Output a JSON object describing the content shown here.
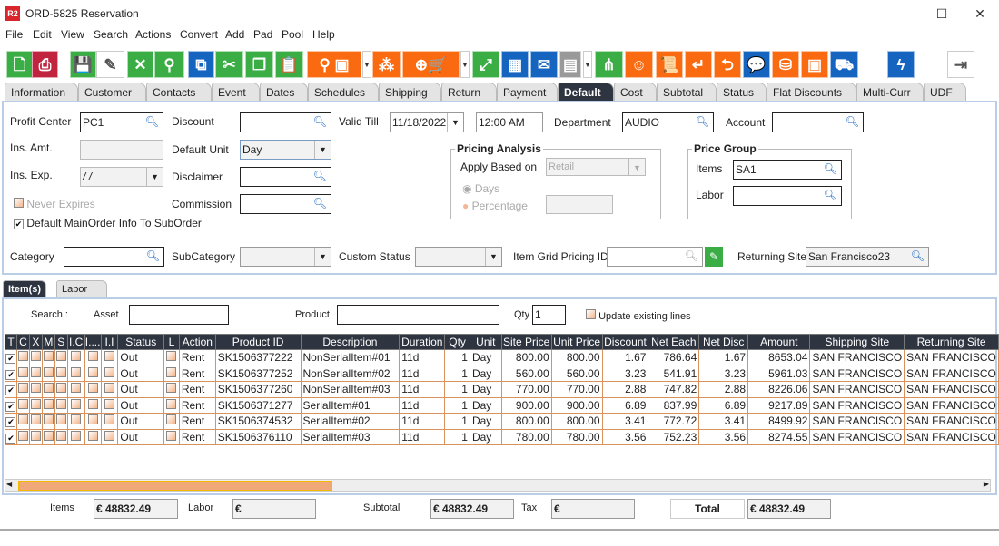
{
  "window": {
    "title": "ORD-5825 Reservation",
    "app_icon": "R2",
    "minimize": "—",
    "maximize": "☐",
    "close": "✕"
  },
  "menu": [
    "File",
    "Edit",
    "View",
    "Search",
    "Actions",
    "Convert",
    "Add",
    "Pad",
    "Pool",
    "Help"
  ],
  "toolbar": [
    {
      "icon": "new-document-icon",
      "glyph": "🗋"
    },
    {
      "icon": "print-icon",
      "glyph": "⎙"
    },
    {
      "icon": "save-icon",
      "glyph": "💾"
    },
    {
      "icon": "edit-icon",
      "glyph": "✎"
    },
    {
      "icon": "delete-icon",
      "glyph": "✕"
    },
    {
      "icon": "search-icon",
      "glyph": "⚲"
    },
    {
      "icon": "copy-order-icon",
      "glyph": "⧉"
    },
    {
      "icon": "cut-icon",
      "glyph": "✂"
    },
    {
      "icon": "copy-icon",
      "glyph": "❐"
    },
    {
      "icon": "paste-icon",
      "glyph": "📋"
    },
    {
      "icon": "search-product-icon",
      "glyph": "⚲ ▣"
    },
    {
      "icon": "kit-icon",
      "glyph": "⁂"
    },
    {
      "icon": "purchase-order-cart-icon",
      "glyph": "⊕🛒"
    },
    {
      "icon": "expand-icon",
      "glyph": "⤢"
    },
    {
      "icon": "hierarchy-icon",
      "glyph": "▦"
    },
    {
      "icon": "message-icon",
      "glyph": "✉"
    },
    {
      "icon": "calendar-icon",
      "glyph": "▤"
    },
    {
      "icon": "tree-icon",
      "glyph": "⋔"
    },
    {
      "icon": "smile-icon",
      "glyph": "☺"
    },
    {
      "icon": "scroll-icon",
      "glyph": "📜"
    },
    {
      "icon": "return-icon",
      "glyph": "↵"
    },
    {
      "icon": "package-return-icon",
      "glyph": "⮌"
    },
    {
      "icon": "chat-count-icon",
      "glyph": "💬"
    },
    {
      "icon": "coins-icon",
      "glyph": "⛁"
    },
    {
      "icon": "safe-icon",
      "glyph": "▣"
    },
    {
      "icon": "delivery-truck-icon",
      "glyph": "⛟"
    },
    {
      "icon": "lightning-icon",
      "glyph": "ϟ"
    },
    {
      "icon": "exit-icon",
      "glyph": "⇥"
    }
  ],
  "tabs": [
    "Information",
    "Customer",
    "Contacts",
    "Event",
    "Dates",
    "Schedules",
    "Shipping",
    "Return",
    "Payment",
    "Default",
    "Cost",
    "Subtotal",
    "Status",
    "Flat Discounts",
    "Multi-Curr",
    "UDF"
  ],
  "active_tab": "Default",
  "form": {
    "profit_center_label": "Profit Center",
    "profit_center": "PC1",
    "ins_amt_label": "Ins. Amt.",
    "ins_exp_label": "Ins. Exp.",
    "ins_exp": " / /",
    "never_expires": "Never Expires",
    "default_main": "Default MainOrder Info To SubOrder",
    "discount_label": "Discount",
    "default_unit_label": "Default Unit",
    "default_unit": "Day",
    "disclaimer_label": "Disclaimer",
    "commission_label": "Commission",
    "valid_till_label": "Valid Till",
    "valid_date": "11/18/2022",
    "valid_time": "12:00 AM",
    "department_label": "Department",
    "department": "AUDIO",
    "account_label": "Account",
    "pricing_title": "Pricing Analysis",
    "apply_based_label": "Apply Based on",
    "apply_based": "Retail",
    "days": "Days",
    "percentage": "Percentage",
    "price_group_title": "Price Group",
    "items_label": "Items",
    "items": "SA1",
    "labor_label": "Labor",
    "category_label": "Category",
    "subcategory_label": "SubCategory",
    "custom_status_label": "Custom Status",
    "grid_pricing_label": "Item Grid Pricing ID",
    "returning_site_label": "Returning Site",
    "returning_site": "San Francisco23"
  },
  "subtabs": [
    "Item(s)",
    "Labor"
  ],
  "search": {
    "label": "Search :",
    "asset": "Asset",
    "product": "Product",
    "qty_label": "Qty",
    "qty": "1",
    "update": "Update existing lines"
  },
  "table": {
    "headers": [
      "T",
      "C",
      "X",
      "M",
      "S",
      "I.C",
      "I....",
      "I.I",
      "Status",
      "L",
      "Action",
      "Product ID",
      "Description",
      "Duration",
      "Qty",
      "Unit",
      "Site Price",
      "Unit Price",
      "Discount",
      "Net Each",
      "Net Disc",
      "Amount",
      "Shipping Site",
      "Returning Site"
    ],
    "rows": [
      [
        "Out",
        "Rent",
        "SK1506377222",
        "NonSerialItem#01",
        "11d",
        "1",
        "Day",
        "800.00",
        "800.00",
        "1.67",
        "786.64",
        "1.67",
        "8653.04",
        "SAN FRANCISCO",
        "SAN FRANCISCO"
      ],
      [
        "Out",
        "Rent",
        "SK1506377252",
        "NonSerialItem#02",
        "11d",
        "1",
        "Day",
        "560.00",
        "560.00",
        "3.23",
        "541.91",
        "3.23",
        "5961.03",
        "SAN FRANCISCO",
        "SAN FRANCISCO"
      ],
      [
        "Out",
        "Rent",
        "SK1506377260",
        "NonSerialItem#03",
        "11d",
        "1",
        "Day",
        "770.00",
        "770.00",
        "2.88",
        "747.82",
        "2.88",
        "8226.06",
        "SAN FRANCISCO",
        "SAN FRANCISCO"
      ],
      [
        "Out",
        "Rent",
        "SK1506371277",
        "SerialItem#01",
        "11d",
        "1",
        "Day",
        "900.00",
        "900.00",
        "6.89",
        "837.99",
        "6.89",
        "9217.89",
        "SAN FRANCISCO",
        "SAN FRANCISCO"
      ],
      [
        "Out",
        "Rent",
        "SK1506374532",
        "SerialItem#02",
        "11d",
        "1",
        "Day",
        "800.00",
        "800.00",
        "3.41",
        "772.72",
        "3.41",
        "8499.92",
        "SAN FRANCISCO",
        "SAN FRANCISCO"
      ],
      [
        "Out",
        "Rent",
        "SK1506376110",
        "SerialItem#03",
        "11d",
        "1",
        "Day",
        "780.00",
        "780.00",
        "3.56",
        "752.23",
        "3.56",
        "8274.55",
        "SAN FRANCISCO",
        "SAN FRANCISCO"
      ]
    ]
  },
  "totals": {
    "items_label": "Items",
    "items": "€ 48832.49",
    "labor_label": "Labor",
    "labor": "€",
    "subtotal_label": "Subtotal",
    "subtotal": "€ 48832.49",
    "tax_label": "Tax",
    "tax": "€",
    "total_label": "Total",
    "total": "€ 48832.49"
  }
}
